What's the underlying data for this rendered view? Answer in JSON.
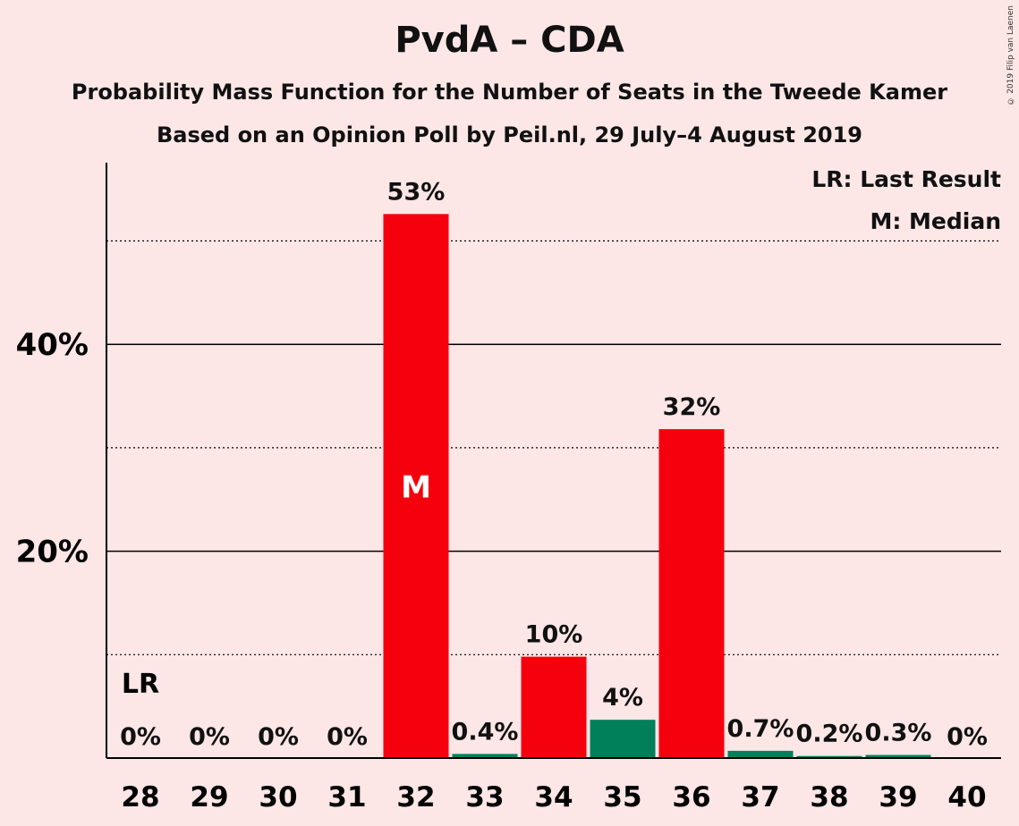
{
  "title": "PvdA – CDA",
  "subtitle": "Probability Mass Function for the Number of Seats in the Tweede Kamer",
  "subtitle2": "Based on an Opinion Poll by Peil.nl, 29 July–4 August 2019",
  "copyright": "© 2019 Filip van Laenen",
  "legend": {
    "lr": "LR: Last Result",
    "m": "M: Median"
  },
  "colors": {
    "background": "#fce6e6",
    "red": "#f5000d",
    "green": "#007f5b"
  },
  "chart_data": {
    "type": "bar",
    "categories": [
      "28",
      "29",
      "30",
      "31",
      "32",
      "33",
      "34",
      "35",
      "36",
      "37",
      "38",
      "39",
      "40"
    ],
    "values": [
      0,
      0,
      0,
      0,
      52.6,
      0.4,
      9.8,
      3.7,
      31.8,
      0.7,
      0.2,
      0.3,
      0
    ],
    "labels": [
      "0%",
      "0%",
      "0%",
      "0%",
      "53%",
      "0.4%",
      "10%",
      "4%",
      "32%",
      "0.7%",
      "0.2%",
      "0.3%",
      "0%"
    ],
    "bar_colors": [
      "#f5000d",
      "#007f5b",
      "#007f5b",
      "#007f5b",
      "#f5000d",
      "#007f5b",
      "#f5000d",
      "#007f5b",
      "#f5000d",
      "#007f5b",
      "#007f5b",
      "#007f5b",
      "#007f5b"
    ],
    "yticks": [
      {
        "value": 20,
        "label": "20%"
      },
      {
        "value": 40,
        "label": "40%"
      }
    ],
    "minor_gridlines": [
      10,
      30,
      50
    ],
    "ylim": [
      0,
      57
    ],
    "last_result": {
      "category": "28",
      "label": "LR"
    },
    "median": {
      "category": "32",
      "label": "M"
    },
    "grid": true,
    "legend_position": "top-right"
  }
}
